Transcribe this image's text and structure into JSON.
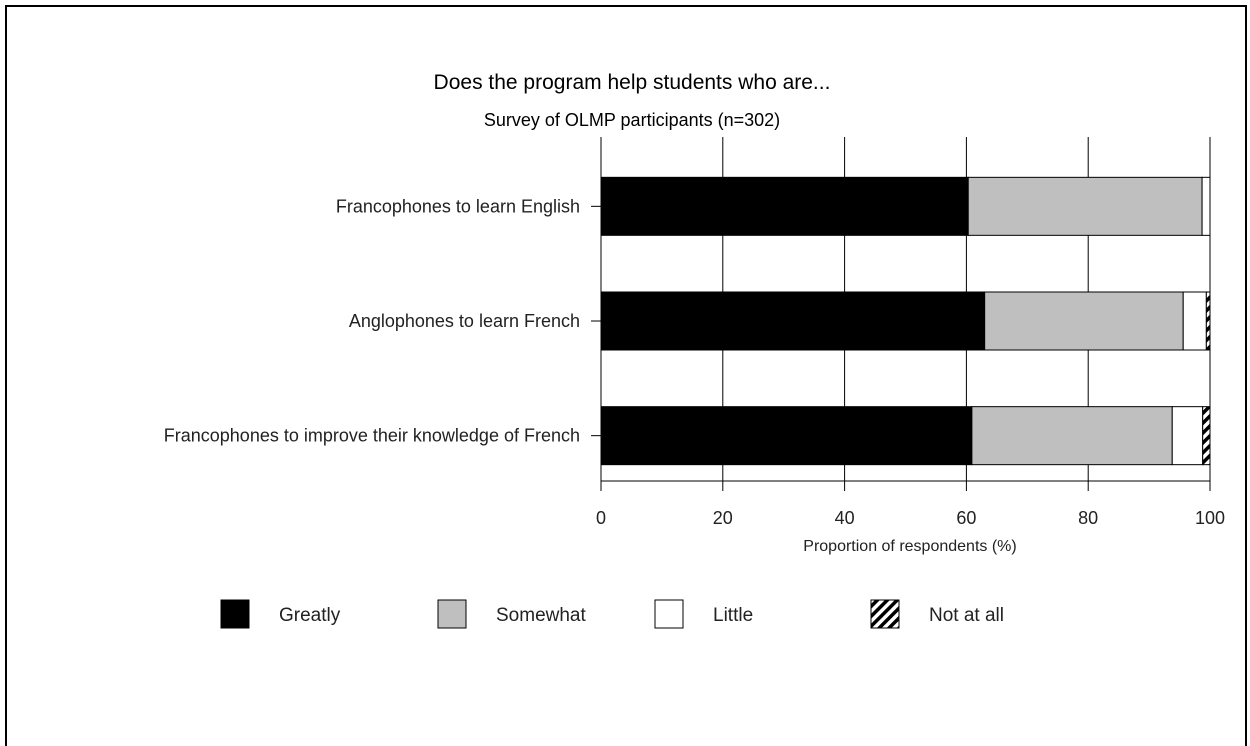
{
  "chart_data": {
    "type": "bar",
    "orientation": "horizontal",
    "stacked": true,
    "title": "Does the program help students who are...",
    "subtitle": "Survey of OLMP participants (n=302)",
    "xlabel": "Proportion of respondents (%)",
    "ylabel": "",
    "xlim": [
      0,
      100
    ],
    "x_ticks": [
      "0",
      "20",
      "40",
      "60",
      "80",
      "100"
    ],
    "grid": "vertical",
    "legend_position": "bottom",
    "categories": [
      "Francophones to learn English",
      "Anglophones to learn French",
      "Francophones to improve their knowledge of French"
    ],
    "series": [
      {
        "name": "Greatly",
        "values": [
          60.3,
          63.0,
          60.9
        ],
        "color": "#000000",
        "pattern": "solid"
      },
      {
        "name": "Somewhat",
        "values": [
          38.4,
          32.6,
          32.9
        ],
        "color": "#bfbfbf",
        "pattern": "solid"
      },
      {
        "name": "Little",
        "values": [
          1.3,
          3.8,
          5.0
        ],
        "color": "#ffffff",
        "pattern": "solid"
      },
      {
        "name": "Not at all",
        "values": [
          0.0,
          0.6,
          1.2
        ],
        "color": "#000000",
        "pattern": "hatch"
      }
    ]
  }
}
